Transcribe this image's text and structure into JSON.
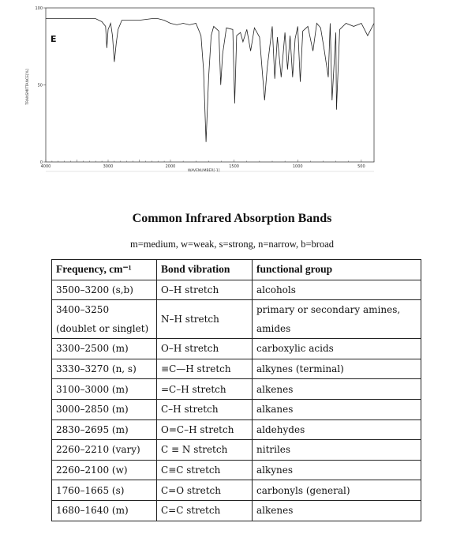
{
  "spectrum": {
    "panel_label": "E",
    "y_tick_labels": [
      "100",
      "50",
      "0"
    ],
    "y_axis_label": "TRANSMITTANCE[%]",
    "x_tick_labels": [
      "4000",
      "3000",
      "2000",
      "1500",
      "1000",
      "500"
    ],
    "x_axis_label": "WAVENUMBER[-1]"
  },
  "chart_data": {
    "type": "line",
    "xlabel": "WAVENUMBER[-1]",
    "ylabel": "TRANSMITTANCE[%]",
    "xlim": [
      4000,
      400
    ],
    "ylim": [
      0,
      100
    ],
    "x_scale": "split-linear (4000-2000 compressed, 2000-400 expanded)",
    "grid": false,
    "series": [
      {
        "x": [
          4000,
          3700,
          3500,
          3400,
          3200,
          3100,
          3040,
          3020,
          3000,
          2960,
          2930,
          2900,
          2870,
          2840,
          2780,
          2700,
          2500,
          2300,
          2200,
          2100,
          2000,
          1950,
          1900,
          1850,
          1800,
          1760,
          1740,
          1720,
          1700,
          1680,
          1660,
          1620,
          1605,
          1590,
          1560,
          1510,
          1495,
          1480,
          1450,
          1430,
          1400,
          1370,
          1340,
          1300,
          1260,
          1240,
          1200,
          1180,
          1160,
          1130,
          1100,
          1080,
          1060,
          1040,
          1020,
          1000,
          980,
          960,
          920,
          880,
          850,
          820,
          790,
          760,
          745,
          730,
          700,
          695,
          670,
          620,
          560,
          500,
          450,
          400
        ],
        "y": [
          93,
          93,
          93,
          93,
          93,
          91,
          88,
          74,
          86,
          90,
          82,
          65,
          77,
          86,
          92,
          92,
          92,
          93,
          93,
          92,
          90,
          89,
          90,
          89,
          90,
          82,
          60,
          13,
          55,
          82,
          88,
          85,
          50,
          70,
          87,
          86,
          38,
          82,
          84,
          78,
          86,
          72,
          87,
          81,
          40,
          61,
          88,
          54,
          81,
          55,
          84,
          60,
          82,
          55,
          80,
          88,
          52,
          85,
          88,
          72,
          90,
          87,
          72,
          55,
          90,
          40,
          84,
          34,
          86,
          90,
          88,
          90,
          82,
          90
        ]
      }
    ]
  },
  "table": {
    "title": "Common Infrared Absorption Bands",
    "legend": "m=medium, w=weak, s=strong, n=narrow, b=broad",
    "headers": [
      "Frequency, cm⁻¹",
      "Bond vibration",
      "functional group"
    ],
    "rows": [
      {
        "freq": "3500–3200 (s,b)",
        "bond": "O–H stretch",
        "group": "alcohols"
      },
      {
        "freq": "3400–3250",
        "freq_note": "(doublet or singlet)",
        "bond": "N–H stretch",
        "group": "primary or secondary amines,",
        "group_note": "amides"
      },
      {
        "freq": "3300–2500 (m)",
        "bond": "O–H stretch",
        "group": "carboxylic acids"
      },
      {
        "freq": "3330–3270 (n, s)",
        "bond_prefix": "≡",
        "bond": "C—H stretch",
        "group": "alkynes (terminal)"
      },
      {
        "freq": "3100–3000 (m)",
        "bond": "=C–H stretch",
        "group": "alkenes"
      },
      {
        "freq": "3000–2850 (m)",
        "bond": "C–H stretch",
        "group": "alkanes"
      },
      {
        "freq": "2830–2695 (m)",
        "bond": "O=C–H stretch",
        "group": "aldehydes"
      },
      {
        "freq": "2260–2210 (vary)",
        "bond_prefix": "C",
        "bond_bond": "≡",
        "bond": "N stretch",
        "group": "nitriles"
      },
      {
        "freq": "2260–2100 (w)",
        "bond_prefix": "C",
        "bond_bond": "≡",
        "bond": "C stretch",
        "group": "alkynes"
      },
      {
        "freq": "1760–1665 (s)",
        "bond": "C=O stretch",
        "group": "carbonyls (general)"
      },
      {
        "freq": "1680–1640 (m)",
        "bond": "C=C stretch",
        "group": "alkenes"
      }
    ]
  }
}
